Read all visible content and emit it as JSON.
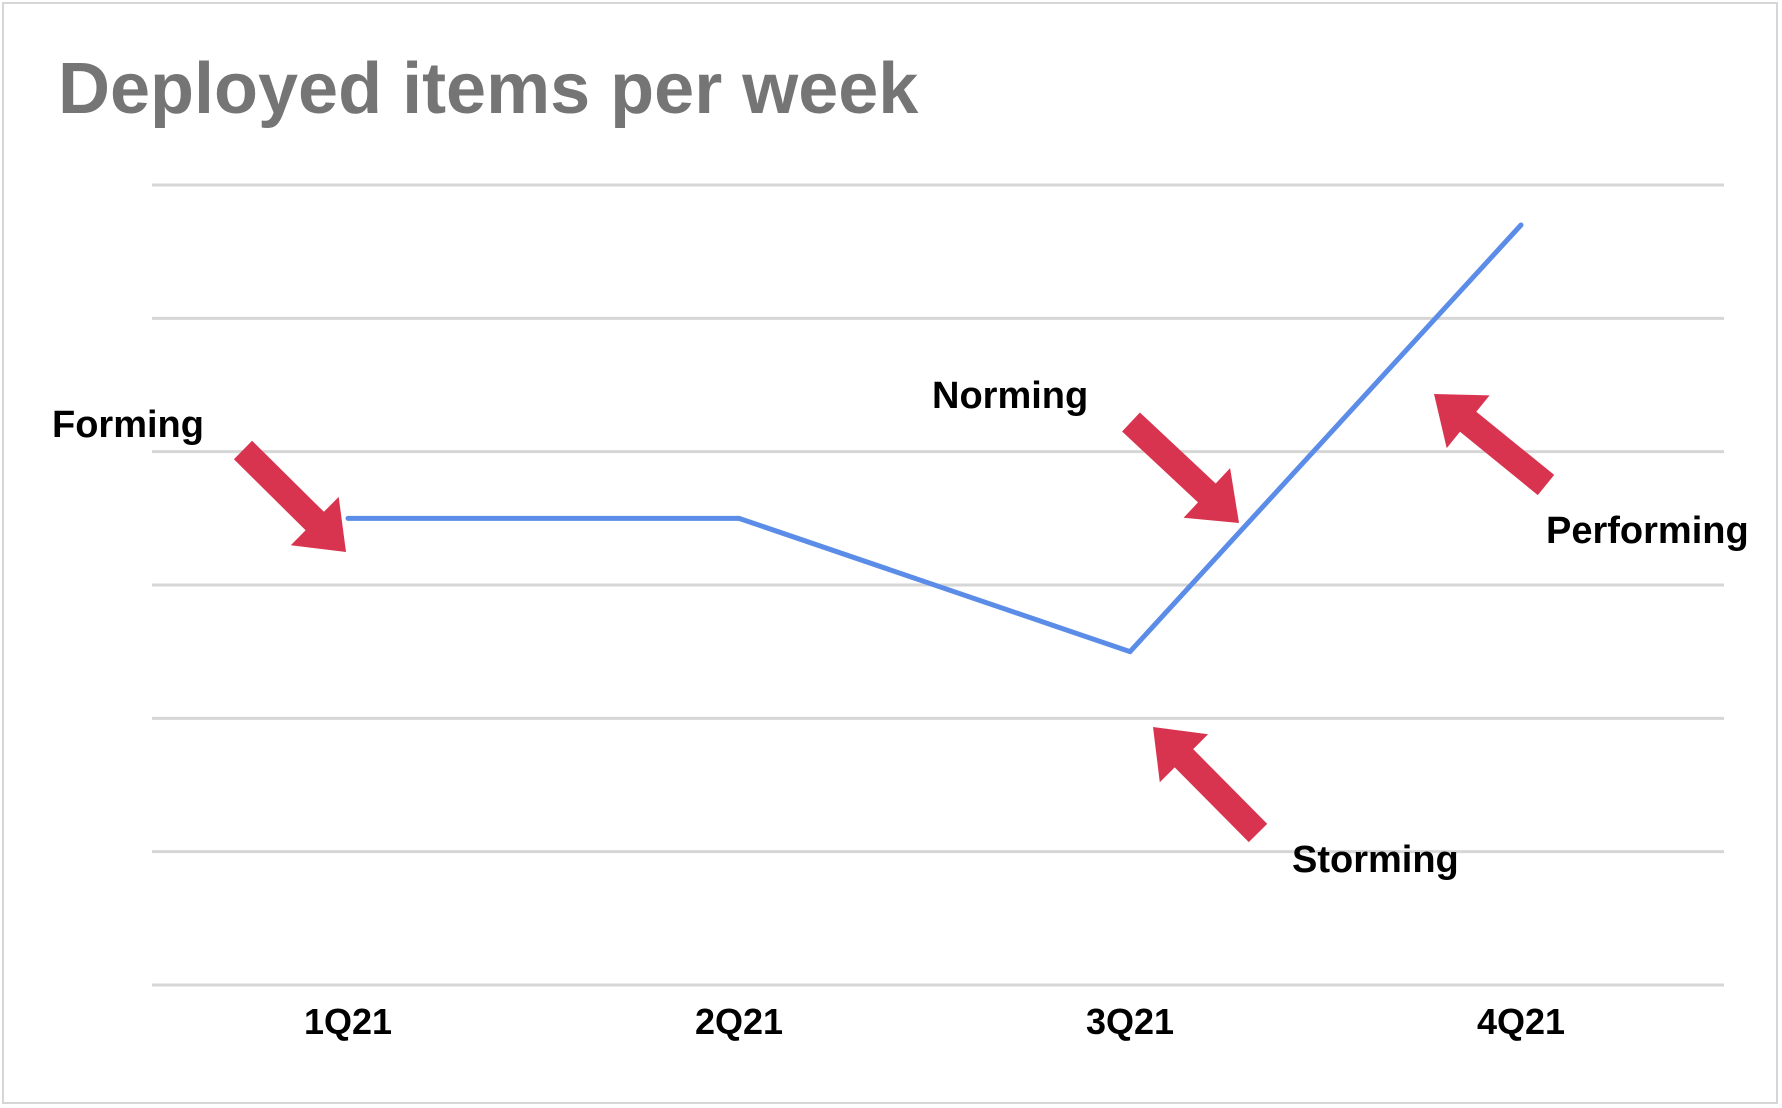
{
  "chart_data": {
    "type": "line",
    "title": "Deployed items per week",
    "xlabel": "",
    "ylabel": "",
    "categories": [
      "1Q21",
      "2Q21",
      "3Q21",
      "4Q21"
    ],
    "series": [
      {
        "values": [
          3.5,
          3.5,
          2.5,
          5.7
        ],
        "color": "#5b8de8"
      }
    ],
    "ylim": [
      0,
      6
    ],
    "y_gridlines": [
      0,
      1,
      2,
      3,
      4,
      5,
      6
    ],
    "y_tick_labels_shown": false,
    "grid": true,
    "legend": "none",
    "annotations": [
      {
        "text": "Forming",
        "category": "1Q21",
        "arrow_color": "#d9344f"
      },
      {
        "text": "Norming",
        "category": "3Q21",
        "arrow_color": "#d9344f"
      },
      {
        "text": "Storming",
        "category": "3Q21",
        "arrow_color": "#d9344f"
      },
      {
        "text": "Performing",
        "category": "4Q21",
        "arrow_color": "#d9344f"
      }
    ]
  },
  "colors": {
    "title": "#757575",
    "gridline": "#d6d6d6",
    "line": "#5b8de8",
    "arrow": "#d9344f",
    "label": "#000000"
  }
}
